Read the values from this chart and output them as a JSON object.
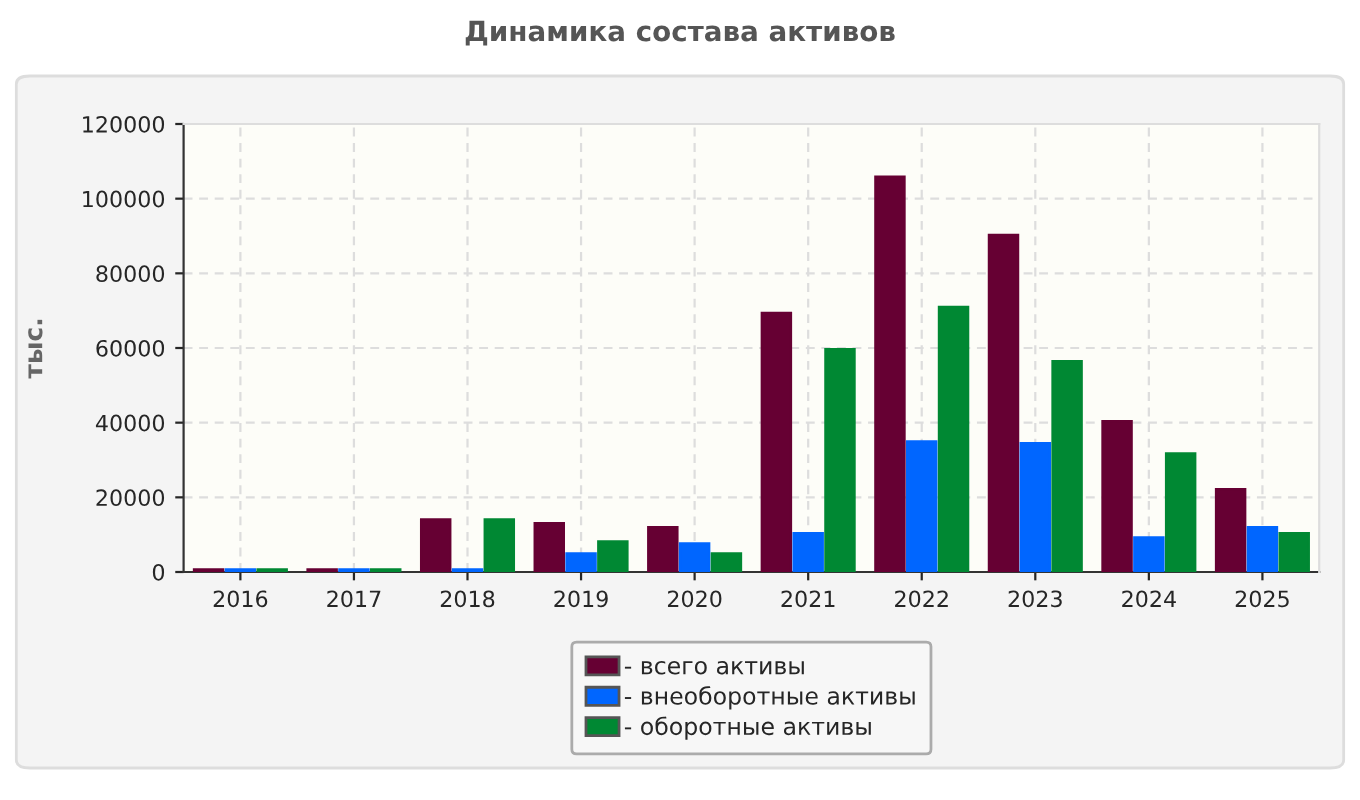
{
  "chart_data": {
    "type": "bar",
    "title": "Динамика состава активов",
    "ylabel": "тыс.",
    "categories": [
      "2016",
      "2017",
      "2018",
      "2019",
      "2020",
      "2021",
      "2022",
      "2023",
      "2024",
      "2025"
    ],
    "series": [
      {
        "name": "- всего активы",
        "color": "#660033",
        "values": [
          700,
          700,
          14100,
          13100,
          12000,
          69400,
          105900,
          90300,
          40400,
          22200
        ]
      },
      {
        "name": "- внеоборотные активы",
        "color": "#0066ff",
        "values": [
          700,
          700,
          700,
          5000,
          7700,
          10400,
          35000,
          34500,
          9300,
          12000
        ]
      },
      {
        "name": "- оборотные активы",
        "color": "#008833",
        "values": [
          700,
          700,
          14100,
          8200,
          5000,
          59700,
          71000,
          56500,
          31800,
          10400
        ]
      }
    ],
    "ylim": [
      0,
      120000
    ],
    "yticks": [
      0,
      20000,
      40000,
      60000,
      80000,
      100000,
      120000
    ],
    "grid": true,
    "legend": "bottom"
  }
}
